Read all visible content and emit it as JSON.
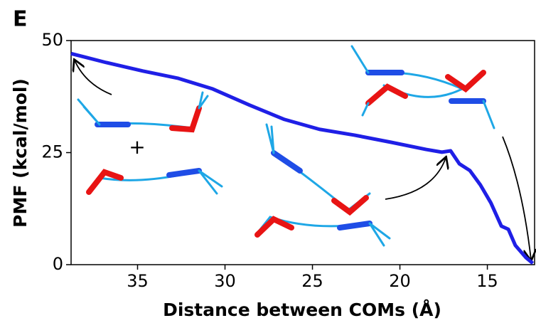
{
  "chart_data": {
    "type": "line",
    "panel_label": "E",
    "annotation": "+",
    "x_label": "Distance between COMs (Å)",
    "y_label": "PMF (kcal/mol)",
    "x": [
      38.8,
      38.0,
      36.8,
      34.7,
      32.7,
      30.7,
      28.6,
      26.6,
      24.6,
      22.6,
      20.5,
      18.5,
      17.6,
      17.1,
      16.6,
      16.0,
      15.4,
      14.8,
      14.2,
      13.8,
      13.4,
      12.8,
      12.4
    ],
    "series": [
      {
        "color": "#1f1fe6",
        "values": [
          47.1,
          46.3,
          45.1,
          43.2,
          41.6,
          39.2,
          35.6,
          32.4,
          30.2,
          28.9,
          27.3,
          25.7,
          25.1,
          25.4,
          22.5,
          21.0,
          17.8,
          13.8,
          8.6,
          7.9,
          4.3,
          1.6,
          0.3
        ]
      }
    ],
    "xlim": [
      38.8,
      12.3
    ],
    "ylim": [
      0,
      50
    ],
    "xticks": [
      35,
      30,
      25,
      20,
      15
    ],
    "yticks": [
      0,
      25,
      50
    ]
  }
}
